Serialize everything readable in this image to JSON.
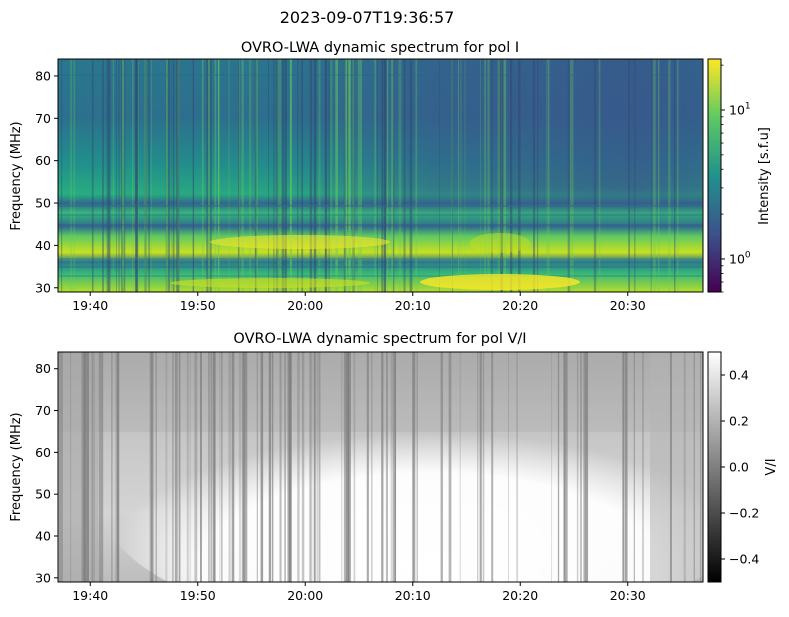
{
  "figure": {
    "suptitle": "2023-09-07T19:36:57"
  },
  "chart_data": [
    {
      "type": "heatmap",
      "title": "OVRO-LWA dynamic spectrum for pol I",
      "xlabel": "",
      "ylabel": "Frequency (MHz)",
      "x_range": [
        "19:37",
        "20:37"
      ],
      "xticks": [
        "19:40",
        "19:50",
        "20:00",
        "20:10",
        "20:20",
        "20:30"
      ],
      "ylim": [
        29,
        84
      ],
      "yticks": [
        30,
        40,
        50,
        60,
        70,
        80
      ],
      "colorbar": {
        "label": "Intensity [s.f.u]",
        "scale": "log",
        "range": [
          0.6,
          22
        ],
        "ticks": [
          1,
          10
        ],
        "tick_labels": [
          {
            "base": "10",
            "exp": "0"
          },
          {
            "base": "10",
            "exp": "1"
          }
        ],
        "colormap": "viridis",
        "colors": [
          "#440154",
          "#3b528b",
          "#21918c",
          "#5ec962",
          "#fde725"
        ]
      },
      "features": [
        {
          "freq_range": [
            29,
            33
          ],
          "time_range": [
            "19:45",
            "20:37"
          ],
          "level": "high"
        },
        {
          "freq_range": [
            36,
            42
          ],
          "time_range": [
            "19:45",
            "20:30"
          ],
          "level": "high"
        },
        {
          "freq_range": [
            60,
            84
          ],
          "time_range": [
            "20:00",
            "20:37"
          ],
          "level": "low"
        }
      ]
    },
    {
      "type": "heatmap",
      "title": "OVRO-LWA dynamic spectrum for pol V/I",
      "xlabel": "",
      "ylabel": "Frequency (MHz)",
      "x_range": [
        "19:37",
        "20:37"
      ],
      "xticks": [
        "19:40",
        "19:50",
        "20:00",
        "20:10",
        "20:20",
        "20:30"
      ],
      "ylim": [
        29,
        84
      ],
      "yticks": [
        30,
        40,
        50,
        60,
        70,
        80
      ],
      "colorbar": {
        "label": "V/I",
        "scale": "linear",
        "range": [
          -0.5,
          0.5
        ],
        "ticks": [
          -0.4,
          -0.2,
          0.0,
          0.2,
          0.4
        ],
        "tick_labels": [
          "−0.4",
          "−0.2",
          "0.0",
          "0.2",
          "0.4"
        ],
        "colormap": "gray",
        "colors": [
          "#000000",
          "#ffffff"
        ]
      },
      "features": [
        {
          "freq_range": [
            29,
            60
          ],
          "time_range": [
            "19:55",
            "20:30"
          ],
          "level": "high"
        },
        {
          "freq_range": [
            60,
            84
          ],
          "time_range": [
            "19:37",
            "20:37"
          ],
          "level": "mid"
        }
      ]
    }
  ]
}
